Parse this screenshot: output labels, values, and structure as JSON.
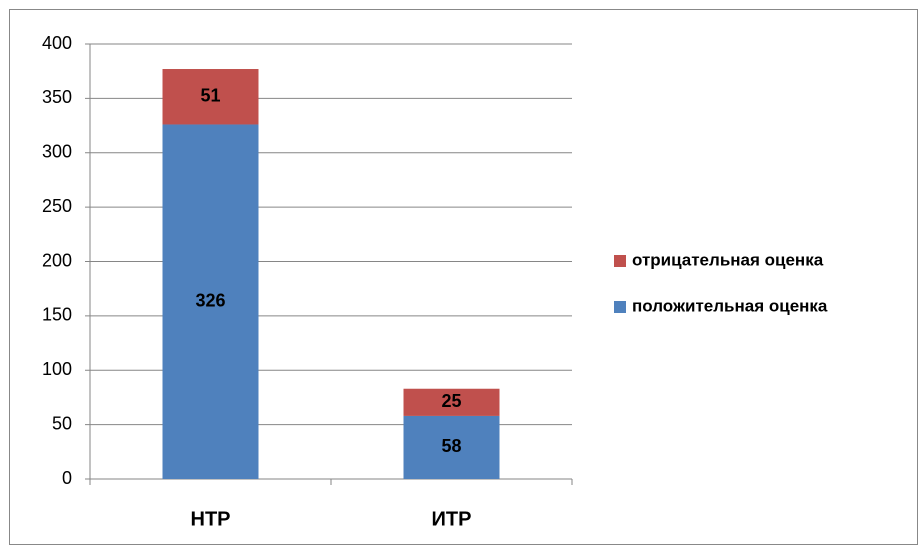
{
  "chart_data": {
    "type": "stacked_bar",
    "categories": [
      "НТР",
      "ИТР"
    ],
    "series": [
      {
        "name": "положительная оценка",
        "color": "#4f81bd",
        "values": [
          326,
          58
        ]
      },
      {
        "name": "отрицательная оценка",
        "color": "#c0504d",
        "values": [
          51,
          25
        ]
      }
    ],
    "ylim": [
      0,
      400
    ],
    "yticks": [
      0,
      50,
      100,
      150,
      200,
      250,
      300,
      350,
      400
    ],
    "grid": true,
    "legend": "right"
  }
}
